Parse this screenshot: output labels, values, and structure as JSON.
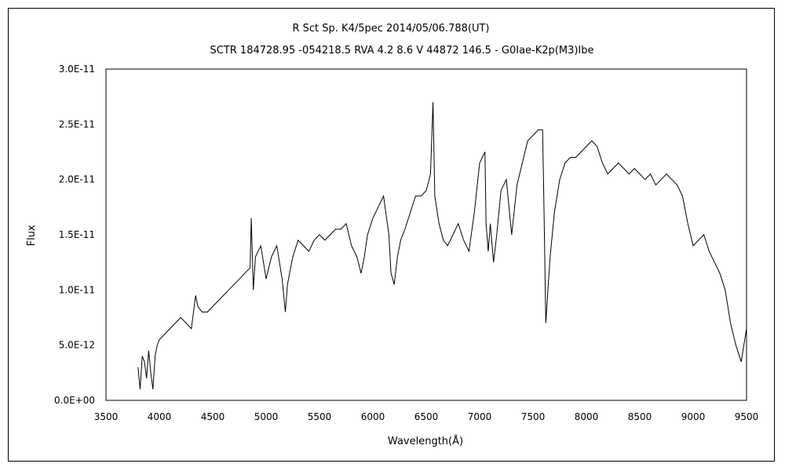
{
  "chart_data": {
    "type": "line",
    "title_line1": "R Sct    Sp. K4/5pec    2014/05/06.788(UT)",
    "title_line2": "SCTR 184728.95 -054218.5 RVA 4.2 8.6 V 44872 146.5 - G0Iae-K2p(M3)Ibe",
    "xlabel": "Wavelength(Å)",
    "ylabel": "Flux",
    "xlim": [
      3500,
      9500
    ],
    "ylim": [
      0,
      3e-11
    ],
    "x_ticks": [
      3500,
      4000,
      4500,
      5000,
      5500,
      6000,
      6500,
      7000,
      7500,
      8000,
      8500,
      9000,
      9500
    ],
    "y_ticks": [
      0,
      5e-12,
      1e-11,
      1.5e-11,
      2e-11,
      2.5e-11,
      3e-11
    ],
    "y_tick_labels": [
      "0.0E+00",
      "5.0E-12",
      "1.0E-11",
      "1.5E-11",
      "2.0E-11",
      "2.5E-11",
      "3.0E-11"
    ],
    "x_tick_labels": [
      "3500",
      "4000",
      "4500",
      "5000",
      "5500",
      "6000",
      "6500",
      "7000",
      "7500",
      "8000",
      "8500",
      "9000",
      "9500"
    ],
    "grid": false,
    "line_color": "#000000",
    "series": [
      {
        "x": [
          3800,
          3820,
          3840,
          3860,
          3880,
          3900,
          3920,
          3940,
          3960,
          3980,
          4000,
          4050,
          4100,
          4150,
          4200,
          4250,
          4300,
          4340,
          4360,
          4400,
          4450,
          4500,
          4550,
          4600,
          4650,
          4700,
          4750,
          4800,
          4850,
          4861,
          4880,
          4900,
          4950,
          5000,
          5050,
          5100,
          5150,
          5180,
          5200,
          5250,
          5300,
          5350,
          5400,
          5450,
          5500,
          5550,
          5600,
          5650,
          5700,
          5750,
          5800,
          5850,
          5890,
          5920,
          5950,
          6000,
          6050,
          6100,
          6150,
          6170,
          6200,
          6230,
          6260,
          6300,
          6350,
          6400,
          6450,
          6500,
          6540,
          6563,
          6580,
          6620,
          6660,
          6700,
          6750,
          6800,
          6850,
          6900,
          6950,
          7000,
          7050,
          7060,
          7080,
          7100,
          7130,
          7160,
          7200,
          7250,
          7300,
          7350,
          7400,
          7450,
          7500,
          7550,
          7590,
          7600,
          7620,
          7640,
          7660,
          7700,
          7750,
          7800,
          7850,
          7900,
          7950,
          8000,
          8050,
          8100,
          8150,
          8200,
          8250,
          8300,
          8350,
          8400,
          8450,
          8500,
          8550,
          8600,
          8650,
          8700,
          8750,
          8800,
          8850,
          8900,
          8950,
          9000,
          9050,
          9100,
          9150,
          9200,
          9250,
          9300,
          9350,
          9400,
          9450,
          9500
        ],
        "y": [
          3e-12,
          1e-12,
          4e-12,
          3.5e-12,
          2e-12,
          4.5e-12,
          2.5e-12,
          1e-12,
          4e-12,
          5e-12,
          5.5e-12,
          6e-12,
          6.5e-12,
          7e-12,
          7.5e-12,
          7e-12,
          6.5e-12,
          9.5e-12,
          8.5e-12,
          8e-12,
          8e-12,
          8.5e-12,
          9e-12,
          9.5e-12,
          1e-11,
          1.05e-11,
          1.1e-11,
          1.15e-11,
          1.2e-11,
          1.65e-11,
          1e-11,
          1.3e-11,
          1.4e-11,
          1.1e-11,
          1.3e-11,
          1.4e-11,
          1.1e-11,
          8e-12,
          1.05e-11,
          1.3e-11,
          1.45e-11,
          1.4e-11,
          1.35e-11,
          1.45e-11,
          1.5e-11,
          1.45e-11,
          1.5e-11,
          1.55e-11,
          1.55e-11,
          1.6e-11,
          1.4e-11,
          1.3e-11,
          1.15e-11,
          1.3e-11,
          1.5e-11,
          1.65e-11,
          1.75e-11,
          1.85e-11,
          1.5e-11,
          1.15e-11,
          1.05e-11,
          1.3e-11,
          1.45e-11,
          1.55e-11,
          1.7e-11,
          1.85e-11,
          1.85e-11,
          1.9e-11,
          2.05e-11,
          2.7e-11,
          1.85e-11,
          1.6e-11,
          1.45e-11,
          1.4e-11,
          1.5e-11,
          1.6e-11,
          1.45e-11,
          1.35e-11,
          1.7e-11,
          2.15e-11,
          2.25e-11,
          1.6e-11,
          1.35e-11,
          1.6e-11,
          1.25e-11,
          1.5e-11,
          1.9e-11,
          2e-11,
          1.5e-11,
          1.95e-11,
          2.15e-11,
          2.35e-11,
          2.4e-11,
          2.45e-11,
          2.45e-11,
          1.9e-11,
          7e-12,
          1e-11,
          1.3e-11,
          1.7e-11,
          2e-11,
          2.15e-11,
          2.2e-11,
          2.2e-11,
          2.25e-11,
          2.3e-11,
          2.35e-11,
          2.3e-11,
          2.15e-11,
          2.05e-11,
          2.1e-11,
          2.15e-11,
          2.1e-11,
          2.05e-11,
          2.1e-11,
          2.05e-11,
          2e-11,
          2.05e-11,
          1.95e-11,
          2e-11,
          2.05e-11,
          2e-11,
          1.95e-11,
          1.85e-11,
          1.6e-11,
          1.4e-11,
          1.45e-11,
          1.5e-11,
          1.35e-11,
          1.25e-11,
          1.15e-11,
          1e-11,
          7e-12,
          5e-12,
          3.5e-12,
          6.5e-12
        ]
      }
    ]
  }
}
